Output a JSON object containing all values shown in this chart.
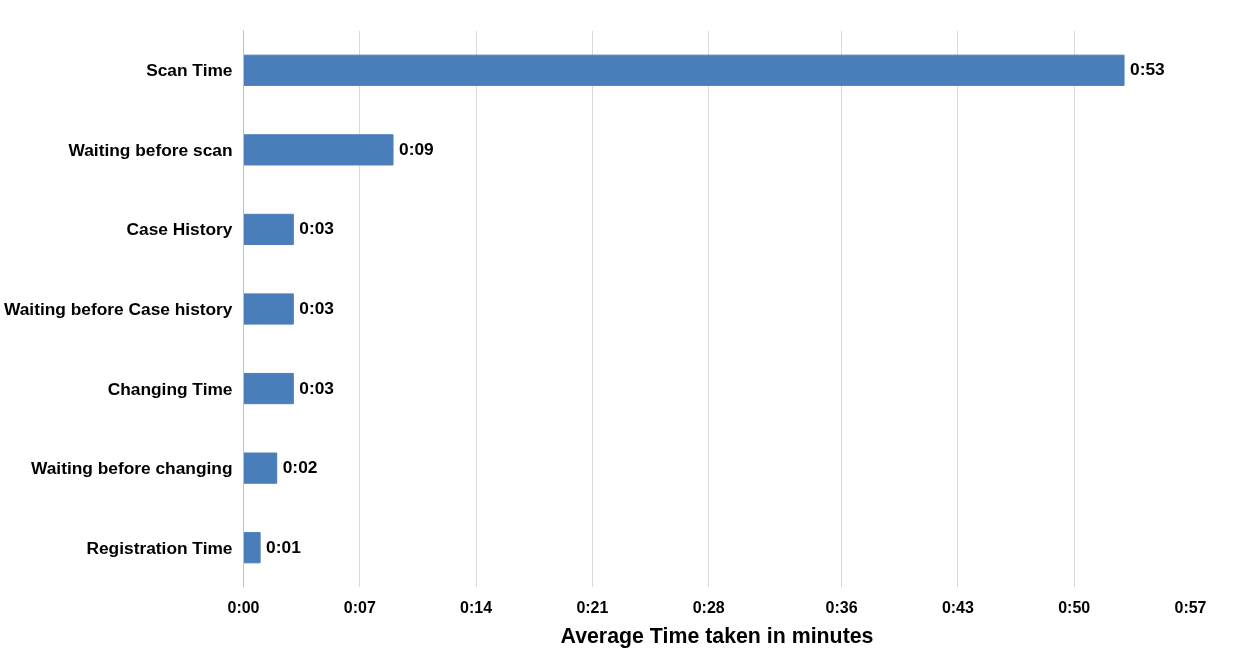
{
  "chart_data": {
    "type": "bar",
    "orientation": "horizontal",
    "xlabel": "Average Time taken in minutes",
    "categories": [
      "Scan Time",
      "Waiting before scan",
      "Case History",
      "Waiting before Case history",
      "Changing Time",
      "Waiting before changing",
      "Registration Time"
    ],
    "values": [
      53,
      9,
      3,
      3,
      3,
      2,
      1
    ],
    "value_labels": [
      "0:53",
      "0:09",
      "0:03",
      "0:03",
      "0:03",
      "0:02",
      "0:01"
    ],
    "color": "#4a7ebb",
    "xlim": [
      0,
      57
    ],
    "xticks": [
      {
        "value": 0,
        "label": "0:00"
      },
      {
        "value": 7,
        "label": "0:07"
      },
      {
        "value": 14,
        "label": "0:14"
      },
      {
        "value": 21,
        "label": "0:21"
      },
      {
        "value": 28,
        "label": "0:28"
      },
      {
        "value": 36,
        "label": "0:36"
      },
      {
        "value": 43,
        "label": "0:43"
      },
      {
        "value": 50,
        "label": "0:50"
      },
      {
        "value": 57,
        "label": "0:57"
      }
    ],
    "grid": "x"
  }
}
